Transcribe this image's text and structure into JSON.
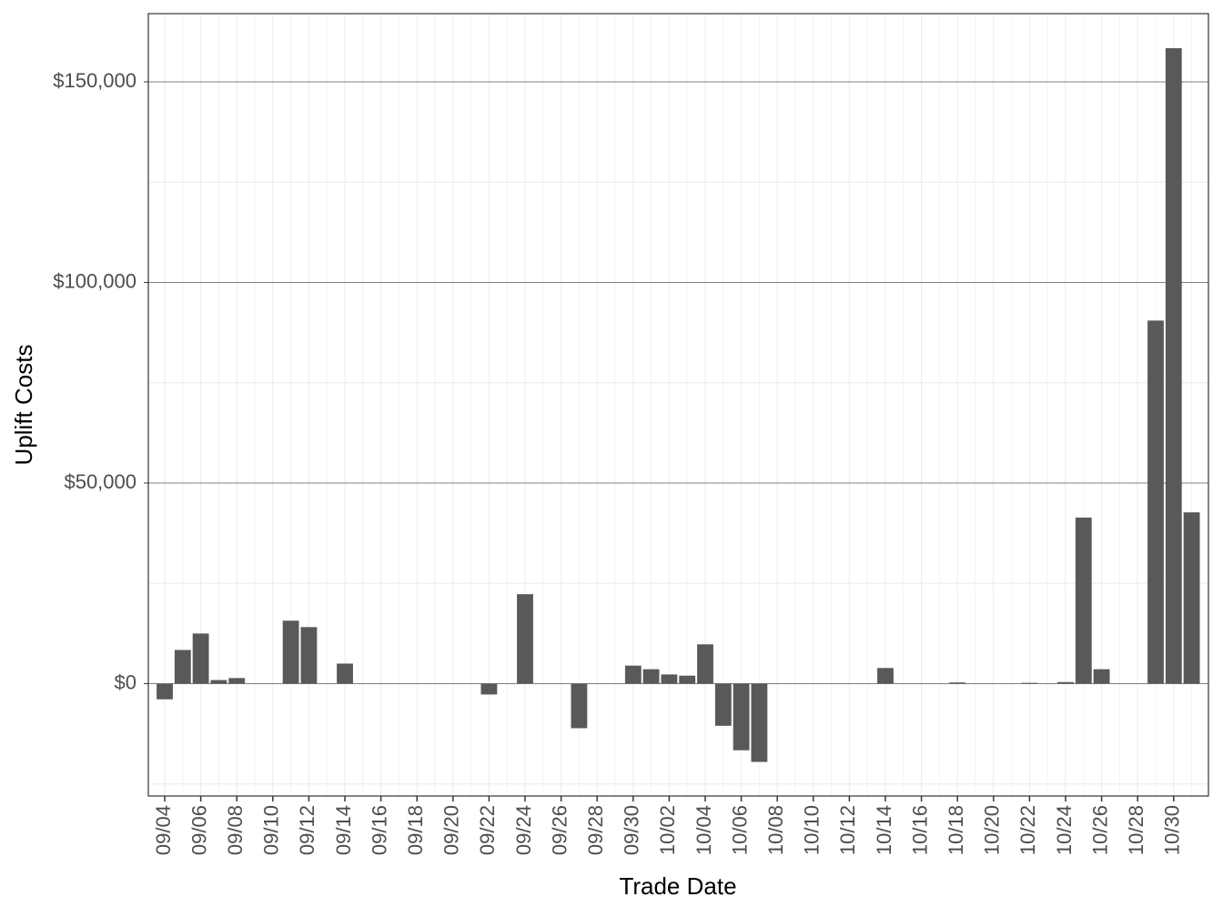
{
  "chart_data": {
    "type": "bar",
    "x_label": "Trade Date",
    "y_label": "Uplift Costs",
    "categories": [
      "09/04",
      null,
      "09/06",
      null,
      "09/08",
      null,
      "09/10",
      null,
      "09/12",
      null,
      "09/14",
      null,
      "09/16",
      null,
      "09/18",
      null,
      "09/20",
      null,
      "09/22",
      null,
      "09/24",
      null,
      "09/26",
      null,
      "09/28",
      null,
      "09/30",
      null,
      "10/02",
      null,
      "10/04",
      null,
      "10/06",
      null,
      "10/08",
      null,
      "10/10",
      null,
      "10/12",
      null,
      "10/14",
      null,
      "10/16",
      null,
      "10/18",
      null,
      "10/20",
      null,
      "10/22",
      null,
      "10/24",
      null,
      "10/26",
      null,
      "10/28",
      null,
      "10/30",
      null
    ],
    "values": [
      -3900,
      8400,
      12500,
      900,
      1400,
      0,
      0,
      15700,
      14100,
      0,
      5000,
      0,
      0,
      0,
      0,
      0,
      0,
      0,
      -2700,
      0,
      22300,
      0,
      0,
      -11100,
      0,
      0,
      4500,
      3600,
      2300,
      2000,
      9800,
      -10500,
      -16600,
      -19500,
      0,
      0,
      0,
      0,
      0,
      0,
      3900,
      0,
      0,
      0,
      300,
      0,
      0,
      0,
      200,
      0,
      400,
      41400,
      3600,
      0,
      0,
      90500,
      158400,
      42700
    ],
    "color": "#595959",
    "ylim": [
      -28000,
      167000
    ],
    "yticks": [
      {
        "value": 0,
        "label": "$0"
      },
      {
        "value": 50000,
        "label": "$50,000"
      },
      {
        "value": 100000,
        "label": "$100,000"
      },
      {
        "value": 150000,
        "label": "$150,000"
      }
    ],
    "grid": true
  }
}
